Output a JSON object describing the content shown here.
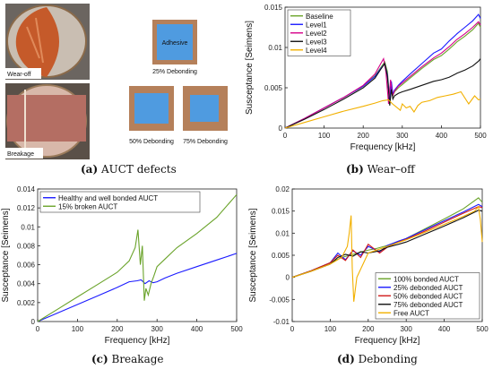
{
  "captions": {
    "a": {
      "letter": "(a)",
      "text": "AUCT defects"
    },
    "b": {
      "letter": "(b)",
      "text": "Wear–off"
    },
    "c": {
      "letter": "(c)",
      "text": "Breakage"
    },
    "d": {
      "letter": "(d)",
      "text": "Debonding"
    }
  },
  "photos": {
    "wear_off_label": "Wear-off",
    "breakage_label": "Breakage",
    "adhesive_label": "Adhesive",
    "debond_25": "25% Debonding",
    "debond_50": "50% Debonding",
    "debond_75": "75% Debonding"
  },
  "colors": {
    "green": "#6aa32a",
    "blue": "#1a1aff",
    "magenta": "#d6008a",
    "black": "#111111",
    "orange": "#f2b000",
    "red": "#d11a1a",
    "navy": "#1a1f9e",
    "adhesive": "#4f9be0",
    "wood": "#b5805a"
  },
  "chart_data": [
    {
      "id": "b",
      "type": "line",
      "xlabel": "Frequency [kHz]",
      "ylabel": "Susceptance [Seimens]",
      "xlim": [
        0,
        500
      ],
      "ylim": [
        0,
        0.015
      ],
      "xticks": [
        0,
        100,
        200,
        300,
        400,
        500
      ],
      "yticks": [
        0,
        0.005,
        0.01,
        0.015
      ],
      "ytick_labels": [
        "0",
        "0.005",
        "0.01",
        "0.015"
      ],
      "legend_position": "top-left",
      "series": [
        {
          "name": "Baseline",
          "color": "green",
          "x": [
            0,
            50,
            100,
            150,
            200,
            230,
            245,
            255,
            262,
            268,
            272,
            276,
            280,
            290,
            300,
            320,
            350,
            380,
            400,
            420,
            440,
            460,
            480,
            495,
            500
          ],
          "y": [
            0,
            0.0012,
            0.0025,
            0.0038,
            0.0052,
            0.0065,
            0.0075,
            0.0082,
            0.007,
            0.0035,
            0.0055,
            0.004,
            0.0045,
            0.005,
            0.0054,
            0.0062,
            0.0074,
            0.0085,
            0.009,
            0.0098,
            0.0107,
            0.0114,
            0.0122,
            0.013,
            0.0125
          ]
        },
        {
          "name": "Level1",
          "color": "blue",
          "x": [
            0,
            50,
            100,
            150,
            200,
            230,
            245,
            255,
            262,
            268,
            272,
            276,
            280,
            290,
            300,
            320,
            350,
            380,
            400,
            420,
            440,
            460,
            480,
            495,
            500
          ],
          "y": [
            0,
            0.0012,
            0.0025,
            0.0038,
            0.0052,
            0.0064,
            0.0074,
            0.008,
            0.0066,
            0.0032,
            0.0058,
            0.0042,
            0.0047,
            0.0053,
            0.0058,
            0.0067,
            0.008,
            0.0093,
            0.0098,
            0.0108,
            0.0117,
            0.0125,
            0.0133,
            0.0141,
            0.0136
          ]
        },
        {
          "name": "Level2",
          "color": "magenta",
          "x": [
            0,
            50,
            100,
            150,
            200,
            230,
            245,
            252,
            258,
            265,
            270,
            275,
            280,
            290,
            300,
            320,
            350,
            380,
            400,
            420,
            440,
            460,
            480,
            495,
            500
          ],
          "y": [
            0,
            0.0012,
            0.0025,
            0.0038,
            0.0053,
            0.0067,
            0.008,
            0.0086,
            0.007,
            0.003,
            0.006,
            0.004,
            0.0046,
            0.0052,
            0.0056,
            0.0064,
            0.0076,
            0.0087,
            0.0093,
            0.0101,
            0.011,
            0.0117,
            0.0125,
            0.0132,
            0.0128
          ]
        },
        {
          "name": "Level3",
          "color": "black",
          "x": [
            0,
            50,
            100,
            150,
            200,
            230,
            245,
            255,
            262,
            268,
            272,
            276,
            280,
            290,
            300,
            320,
            350,
            380,
            400,
            420,
            440,
            460,
            480,
            495,
            500
          ],
          "y": [
            0,
            0.0011,
            0.0023,
            0.0036,
            0.005,
            0.0062,
            0.0073,
            0.008,
            0.0064,
            0.0028,
            0.0048,
            0.0036,
            0.004,
            0.0043,
            0.0045,
            0.0048,
            0.0053,
            0.0058,
            0.006,
            0.0063,
            0.0068,
            0.0072,
            0.0077,
            0.0083,
            0.0086
          ]
        },
        {
          "name": "Level4",
          "color": "orange",
          "x": [
            0,
            50,
            100,
            150,
            200,
            230,
            250,
            265,
            275,
            285,
            295,
            300,
            310,
            320,
            330,
            340,
            350,
            370,
            390,
            410,
            430,
            450,
            470,
            485,
            495,
            500
          ],
          "y": [
            0,
            0.0007,
            0.0014,
            0.0021,
            0.0027,
            0.0031,
            0.0034,
            0.0035,
            0.003,
            0.0026,
            0.0022,
            0.003,
            0.0025,
            0.0027,
            0.002,
            0.0028,
            0.0032,
            0.0034,
            0.0038,
            0.004,
            0.0042,
            0.0045,
            0.003,
            0.004,
            0.0035,
            0.0036
          ]
        }
      ]
    },
    {
      "id": "c",
      "type": "line",
      "xlabel": "Frequency [kHz]",
      "ylabel": "Susceptance [Seimens]",
      "xlim": [
        0,
        500
      ],
      "ylim": [
        0,
        0.014
      ],
      "xticks": [
        0,
        100,
        200,
        300,
        400,
        500
      ],
      "yticks": [
        0,
        0.002,
        0.004,
        0.006,
        0.008,
        0.01,
        0.012,
        0.014
      ],
      "ytick_labels": [
        "0",
        "0.002",
        "0.004",
        "0.006",
        "0.008",
        "0.01",
        "0.012",
        "0.014"
      ],
      "legend_position": "top-left",
      "series": [
        {
          "name": "Healthy and well bonded AUCT",
          "color": "blue",
          "x": [
            0,
            50,
            100,
            150,
            200,
            230,
            250,
            260,
            270,
            280,
            290,
            300,
            320,
            350,
            400,
            450,
            500
          ],
          "y": [
            0,
            0.0009,
            0.0018,
            0.0027,
            0.0036,
            0.0042,
            0.0043,
            0.0044,
            0.004,
            0.0043,
            0.0041,
            0.0042,
            0.0046,
            0.0051,
            0.0058,
            0.0065,
            0.0072
          ]
        },
        {
          "name": "15% broken AUCT",
          "color": "green",
          "x": [
            0,
            50,
            100,
            150,
            200,
            230,
            245,
            252,
            258,
            263,
            268,
            272,
            278,
            285,
            292,
            300,
            320,
            350,
            400,
            450,
            500
          ],
          "y": [
            0,
            0.0013,
            0.0026,
            0.0039,
            0.0052,
            0.0064,
            0.0078,
            0.0097,
            0.006,
            0.008,
            0.0022,
            0.0035,
            0.0028,
            0.004,
            0.0048,
            0.0058,
            0.0066,
            0.0078,
            0.0093,
            0.011,
            0.0134
          ]
        }
      ]
    },
    {
      "id": "d",
      "type": "line",
      "xlabel": "Frequency [kHz]",
      "ylabel": "Susceptance [Seimens]",
      "xlim": [
        0,
        500
      ],
      "ylim": [
        -0.01,
        0.02
      ],
      "xticks": [
        0,
        100,
        200,
        300,
        400,
        500
      ],
      "yticks": [
        -0.01,
        -0.005,
        0,
        0.005,
        0.01,
        0.015,
        0.02
      ],
      "ytick_labels": [
        "-0.01",
        "-0.005",
        "0",
        "0.005",
        "0.01",
        "0.015",
        "0.02"
      ],
      "legend_position": "bottom-right",
      "series": [
        {
          "name": "100% bonded AUCT",
          "color": "green",
          "x": [
            0,
            50,
            100,
            130,
            160,
            190,
            220,
            250,
            280,
            300,
            350,
            400,
            450,
            490,
            500
          ],
          "y": [
            0,
            0.0015,
            0.0033,
            0.0045,
            0.0052,
            0.006,
            0.0065,
            0.0072,
            0.008,
            0.0088,
            0.011,
            0.0132,
            0.0155,
            0.018,
            0.017
          ]
        },
        {
          "name": "25% debonded AUCT",
          "color": "blue",
          "x": [
            0,
            50,
            100,
            120,
            140,
            160,
            180,
            200,
            230,
            250,
            280,
            300,
            350,
            400,
            450,
            490,
            500
          ],
          "y": [
            0,
            0.0015,
            0.0033,
            0.0055,
            0.004,
            0.006,
            0.005,
            0.007,
            0.0058,
            0.0072,
            0.0082,
            0.0088,
            0.0108,
            0.0128,
            0.0148,
            0.0165,
            0.016
          ]
        },
        {
          "name": "50% debonded AUCT",
          "color": "red",
          "x": [
            0,
            50,
            100,
            120,
            140,
            160,
            180,
            200,
            230,
            250,
            280,
            300,
            350,
            400,
            450,
            490,
            500
          ],
          "y": [
            0,
            0.0015,
            0.0033,
            0.005,
            0.0038,
            0.0062,
            0.0045,
            0.0075,
            0.0055,
            0.0068,
            0.008,
            0.0086,
            0.0105,
            0.0125,
            0.0145,
            0.016,
            0.0158
          ]
        },
        {
          "name": "75% debonded AUCT",
          "color": "black",
          "x": [
            0,
            50,
            100,
            120,
            140,
            160,
            180,
            200,
            230,
            250,
            280,
            300,
            350,
            400,
            450,
            490,
            500
          ],
          "y": [
            0,
            0.0014,
            0.003,
            0.0045,
            0.0052,
            0.0048,
            0.0058,
            0.0055,
            0.006,
            0.0068,
            0.0075,
            0.008,
            0.0098,
            0.0116,
            0.0135,
            0.0152,
            0.015
          ]
        },
        {
          "name": "Free AUCT",
          "color": "orange",
          "x": [
            0,
            50,
            100,
            130,
            145,
            150,
            155,
            158,
            162,
            170,
            200,
            250,
            300,
            350,
            400,
            450,
            480,
            490,
            495,
            500
          ],
          "y": [
            0,
            0.0014,
            0.003,
            0.0045,
            0.007,
            0.01,
            0.014,
            0.002,
            -0.0055,
            0.0,
            0.0055,
            0.007,
            0.0085,
            0.0102,
            0.012,
            0.0138,
            0.015,
            0.016,
            0.013,
            0.008
          ]
        }
      ]
    }
  ]
}
